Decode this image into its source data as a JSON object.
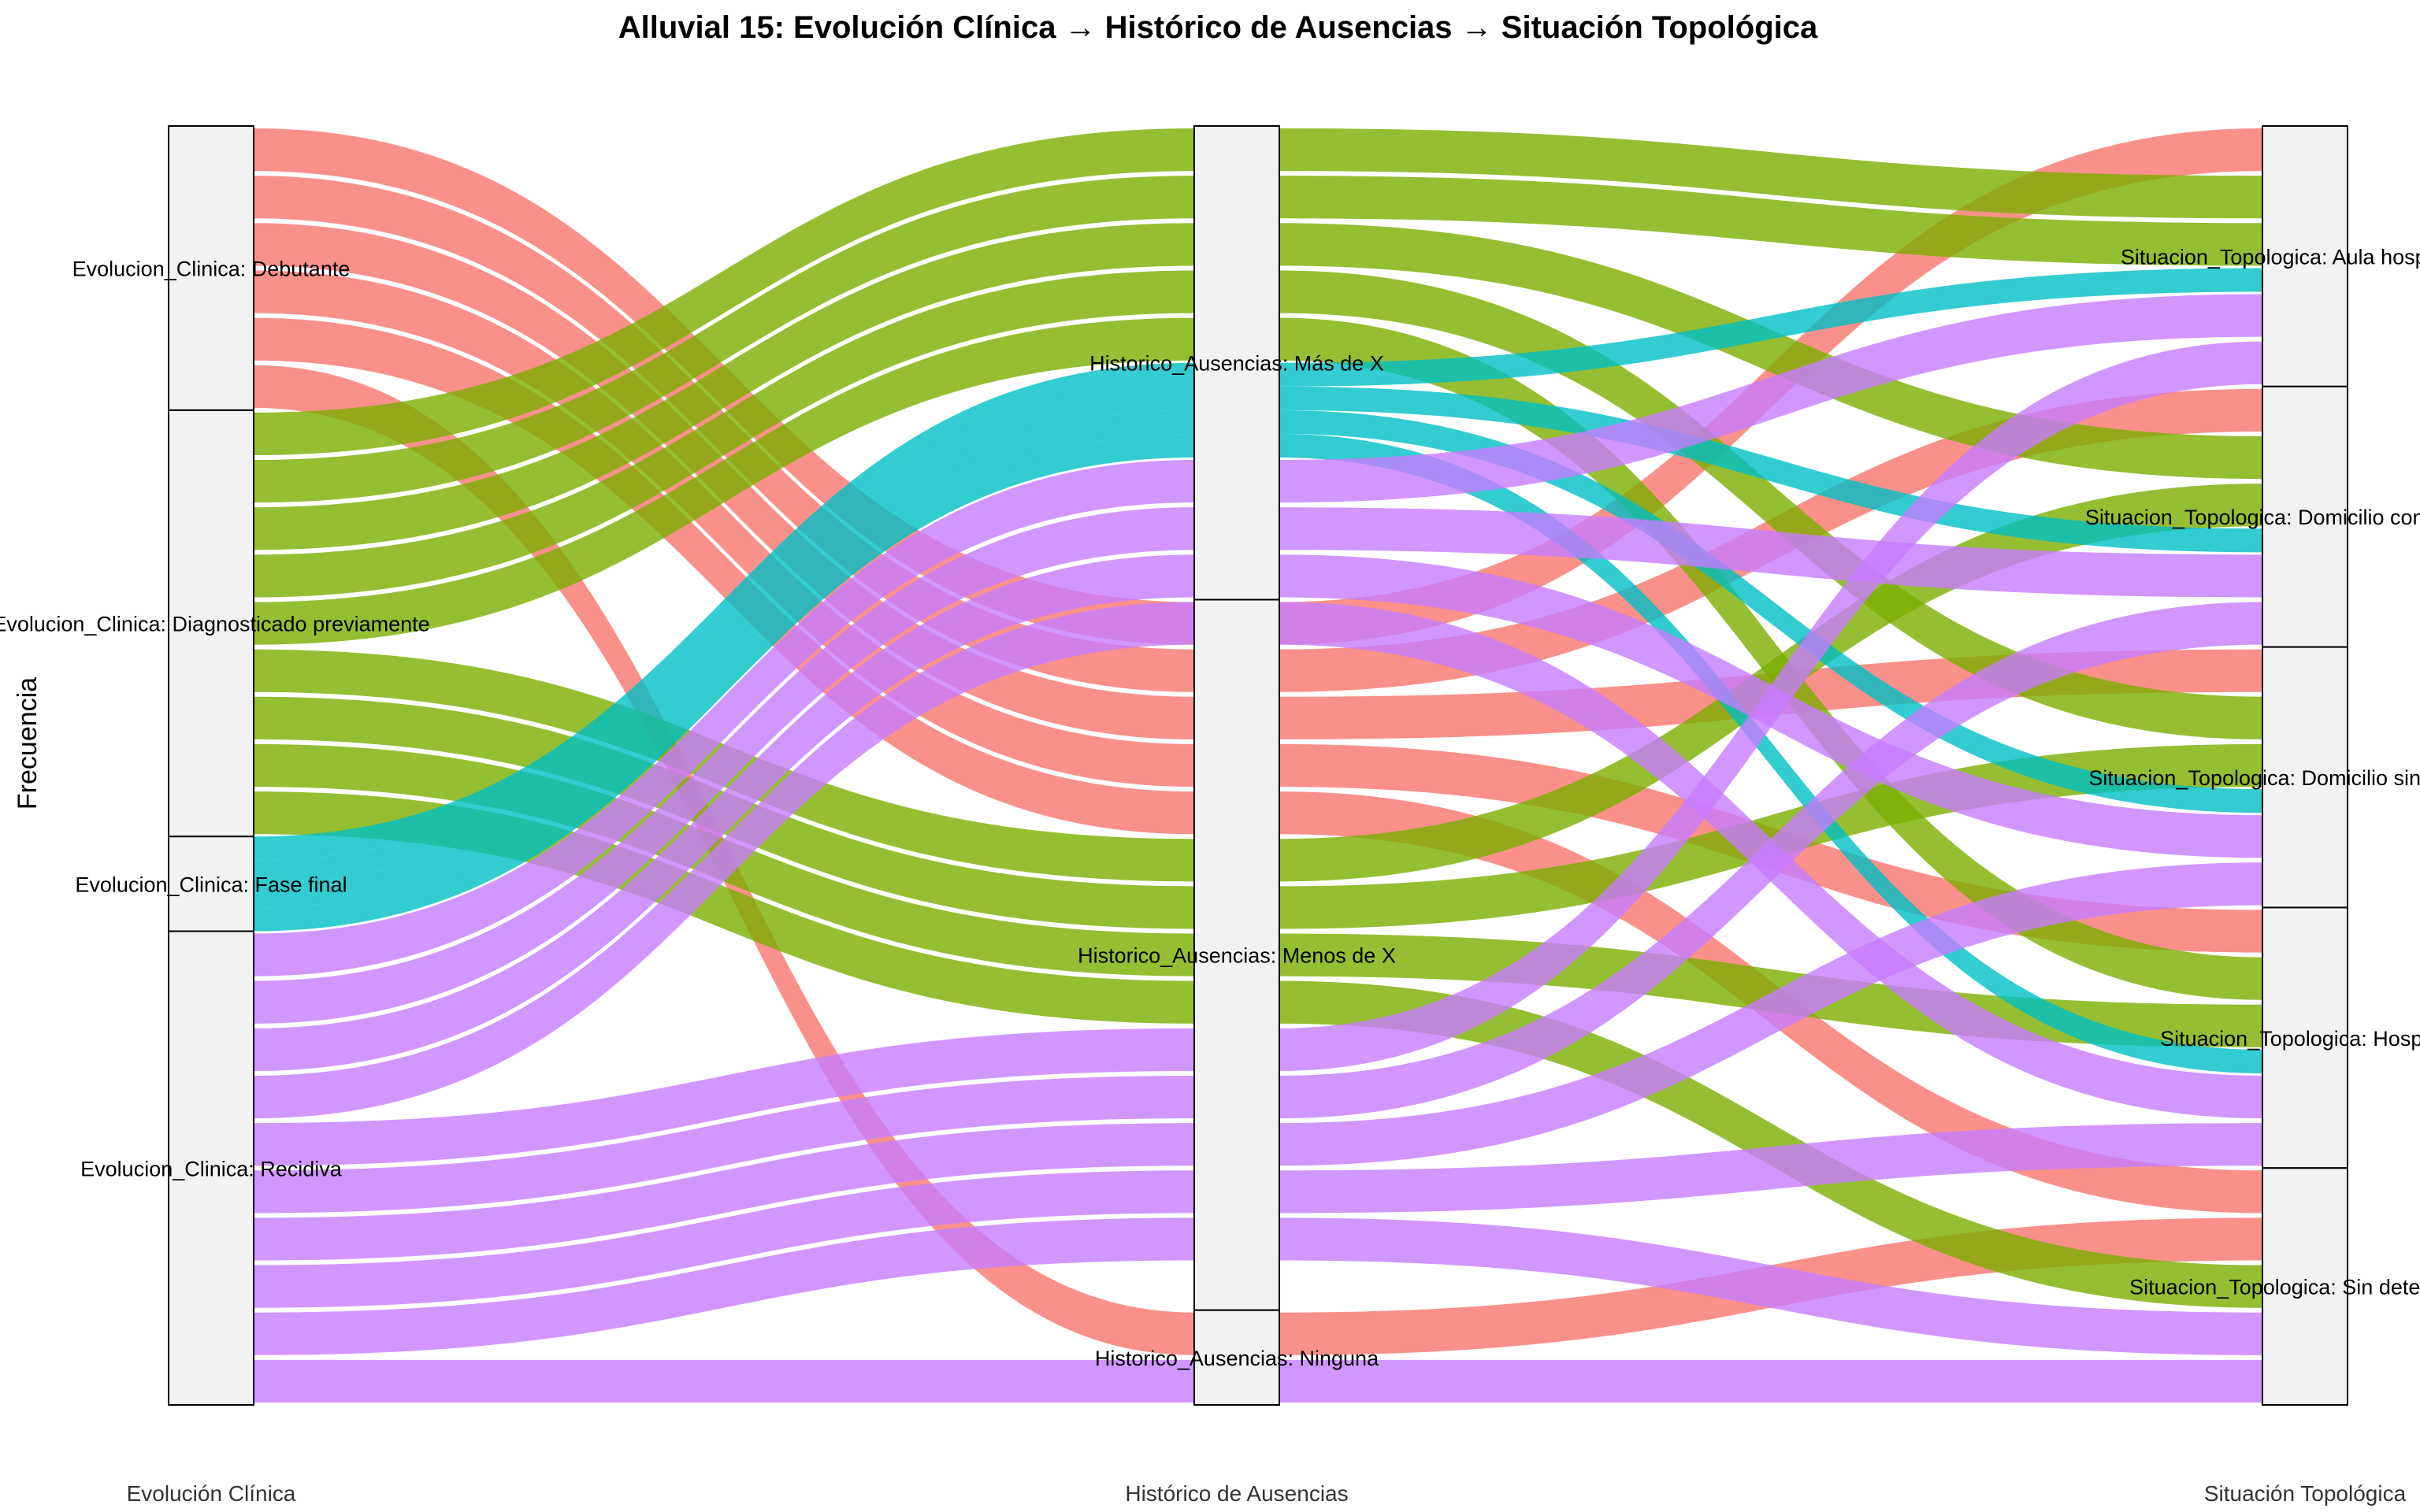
{
  "chart_data": {
    "type": "alluvial",
    "title": "Alluvial 15: Evolución Clínica → Histórico de Ausencias → Situación Topológica",
    "ylabel": "Frecuencia",
    "axes": [
      {
        "name": "Evolución Clínica",
        "strata": [
          {
            "label": "Evolucion_Clinica: Debutante",
            "value": 6
          },
          {
            "label": "Evolucion_Clinica: Diagnosticado previamente",
            "value": 9
          },
          {
            "label": "Evolucion_Clinica: Fase final",
            "value": 2
          },
          {
            "label": "Evolucion_Clinica: Recidiva",
            "value": 10
          }
        ]
      },
      {
        "name": "Histórico de Ausencias",
        "strata": [
          {
            "label": "Historico_Ausencias: Más de X",
            "value": 10
          },
          {
            "label": "Historico_Ausencias: Menos de X",
            "value": 15
          },
          {
            "label": "Historico_Ausencias: Ninguna",
            "value": 2
          }
        ]
      },
      {
        "name": "Situación Topológica",
        "strata": [
          {
            "label": "Situacion_Topologica: Aula hospitalaria",
            "value": 5.5
          },
          {
            "label": "Situacion_Topologica: Domicilio con asistencia",
            "value": 5.5
          },
          {
            "label": "Situacion_Topologica: Domicilio sin asistencia",
            "value": 5.5
          },
          {
            "label": "Situacion_Topologica: Hospital",
            "value": 5.5
          },
          {
            "label": "Situacion_Topologica: Sin determinar",
            "value": 5
          }
        ]
      }
    ],
    "fill_colors": {
      "Debutante": "#F8766D",
      "Diagnosticado previamente": "#7CAE00",
      "Fase final": "#00BFC4",
      "Recidiva": "#C77CFF"
    },
    "flows": [
      {
        "from": "Debutante",
        "left": "Histórico de Ausencias",
        "h1": 1,
        "h2": 8,
        "value": 1
      },
      {
        "from": "Diagnosticado previamente",
        "h1": 0,
        "h2": 0,
        "value": 1
      },
      {
        "from": "Fase final",
        "h1": 4,
        "h2": 1,
        "value": 0.5
      },
      {
        "from": "Recidiva",
        "h1": 3,
        "h2": 2,
        "value": 1
      },
      {
        "from": "Diagnosticado previamente",
        "h1": 1,
        "h2": 3,
        "value": 1
      },
      {
        "from": "Fase final",
        "h1": 4,
        "h2": 3,
        "value": 0.5
      },
      {
        "from": "Recidiva",
        "h1": 4,
        "h2": 3,
        "value": 1
      },
      {
        "from": "Diagnosticado previamente",
        "h1": 2,
        "h2": 5,
        "value": 1
      },
      {
        "from": "Recidiva",
        "h1": 2,
        "h2": 7,
        "value": 1
      },
      {
        "from": "Diagnosticado previamente",
        "h1": 3,
        "h2": 7,
        "value": 1
      },
      {
        "from": "Fase final",
        "h1": 4,
        "h2": 5,
        "value": 0.5
      },
      {
        "from": "Recidiva",
        "h1": 5,
        "h2": 8,
        "value": 1
      },
      {
        "from": "Fase final",
        "h1": 4,
        "h2": 7,
        "value": 0.5
      }
    ],
    "legend": "none"
  },
  "note_axes_positions": "left, middle, right"
}
